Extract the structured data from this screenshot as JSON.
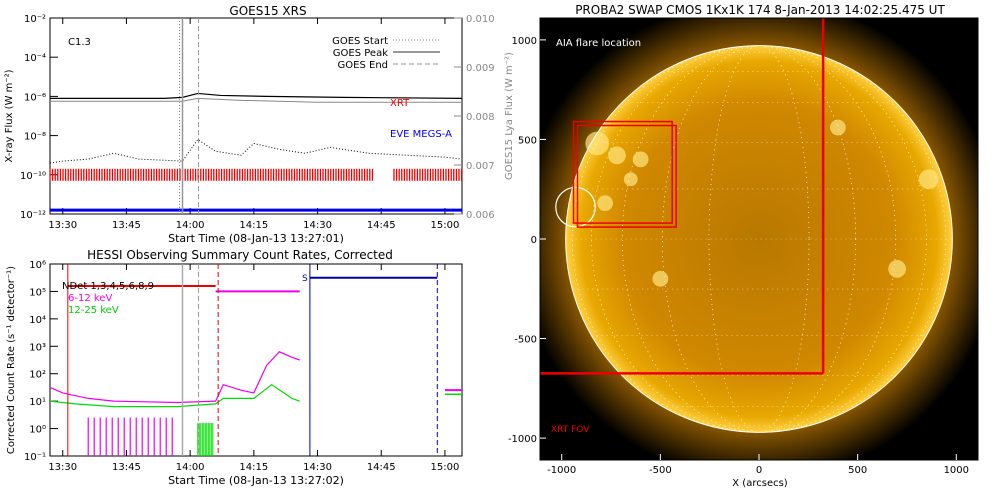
{
  "chart_data": [
    {
      "id": "goes",
      "type": "line",
      "title": "GOES15 XRS",
      "xlabel": "Start Time (08-Jan-13 13:27:01)",
      "ylabel": "X-ray Flux (W m⁻²)",
      "ylabel_right": "GOES15 Lya Flux (W m⁻²)",
      "xlim": [
        13.45,
        15.067
      ],
      "ylim_log": [
        -12,
        -2
      ],
      "ylim_right": [
        0.006,
        0.01
      ],
      "xticks": [
        13.5,
        13.75,
        14.0,
        14.25,
        14.5,
        14.75,
        15.0
      ],
      "xtick_labels": [
        "13:30",
        "13:45",
        "14:00",
        "14:15",
        "14:30",
        "14:45",
        "15:00"
      ],
      "yticks_log": [
        -2,
        -4,
        -6,
        -8,
        -10,
        -12
      ],
      "ytick_labels": [
        "10⁻²",
        "10⁻⁴",
        "10⁻⁶",
        "10⁻⁸",
        "10⁻¹⁰",
        "10⁻¹²"
      ],
      "yticks_right": [
        0.006,
        0.007,
        0.008,
        0.009,
        0.01
      ],
      "ytick_labels_right": [
        "0.006",
        "0.007",
        "0.008",
        "0.009",
        "0.010"
      ],
      "class_label": "C1.3",
      "legend": [
        "GOES Start",
        "GOES Peak",
        "GOES End"
      ],
      "event_times": {
        "start": 13.97,
        "peak": 14.033
      },
      "series_labels": {
        "xrt": "XRT",
        "eve": "EVE MEGS-A"
      },
      "long_channel_log": [
        [
          13.45,
          -6.1
        ],
        [
          13.9,
          -6.1
        ],
        [
          13.97,
          -6.05
        ],
        [
          14.03,
          -5.85
        ],
        [
          14.12,
          -5.95
        ],
        [
          14.3,
          -6.0
        ],
        [
          14.6,
          -6.05
        ],
        [
          15.067,
          -6.1
        ]
      ],
      "long_channel2_log": [
        [
          13.45,
          -6.25
        ],
        [
          13.97,
          -6.25
        ],
        [
          14.03,
          -6.1
        ],
        [
          14.2,
          -6.2
        ],
        [
          14.5,
          -6.3
        ],
        [
          15.067,
          -6.3
        ]
      ],
      "lya_log": [
        [
          13.45,
          -9.4
        ],
        [
          13.5,
          -9.3
        ],
        [
          13.6,
          -9.2
        ],
        [
          13.7,
          -8.9
        ],
        [
          13.8,
          -9.2
        ],
        [
          13.97,
          -9.3
        ],
        [
          14.03,
          -8.2
        ],
        [
          14.1,
          -8.8
        ],
        [
          14.2,
          -9.0
        ],
        [
          14.25,
          -8.4
        ],
        [
          14.35,
          -8.7
        ],
        [
          14.45,
          -8.9
        ],
        [
          14.55,
          -8.6
        ],
        [
          14.7,
          -8.9
        ],
        [
          14.85,
          -9.0
        ],
        [
          15.0,
          -9.1
        ],
        [
          15.067,
          -9.2
        ]
      ],
      "xrt_bands": [
        [
          13.45,
          14.72
        ],
        [
          14.8,
          15.067
        ]
      ],
      "eve_level_log": -11.8
    },
    {
      "id": "hessi",
      "type": "line",
      "title": "HESSI Observing Summary Count Rates, Corrected",
      "xlabel": "Start Time (08-Jan-13 13:27:02)",
      "ylabel": "Corrected Count Rate (s⁻¹ detector⁻¹)",
      "xlim": [
        13.45,
        15.067
      ],
      "ylim_log": [
        -1,
        6
      ],
      "xticks": [
        13.5,
        13.75,
        14.0,
        14.25,
        14.5,
        14.75,
        15.0
      ],
      "xtick_labels": [
        "13:30",
        "13:45",
        "14:00",
        "14:15",
        "14:30",
        "14:45",
        "15:00"
      ],
      "yticks_log": [
        6,
        5,
        4,
        3,
        2,
        1,
        0,
        -1
      ],
      "ytick_labels": [
        "10⁶",
        "10⁵",
        "10⁴",
        "10³",
        "10²",
        "10¹",
        "10⁰",
        "10⁻¹"
      ],
      "annotations": {
        "det": "NDet 1,3,4,5,6,8,9",
        "s": "S"
      },
      "series": [
        {
          "name": "6-12 keV",
          "color": "#ee00ee",
          "points_log": [
            [
              13.45,
              1.5
            ],
            [
              13.5,
              1.3
            ],
            [
              13.6,
              1.1
            ],
            [
              13.7,
              1.0
            ],
            [
              13.95,
              0.95
            ],
            [
              14.1,
              1.0
            ],
            [
              14.13,
              1.6
            ],
            [
              14.2,
              1.4
            ],
            [
              14.25,
              1.3
            ],
            [
              14.3,
              2.3
            ],
            [
              14.35,
              2.8
            ],
            [
              14.4,
              2.6
            ],
            [
              14.43,
              2.5
            ]
          ]
        },
        {
          "name": "12-25 keV",
          "color": "#00dd00",
          "points_log": [
            [
              13.45,
              1.0
            ],
            [
              13.55,
              0.9
            ],
            [
              13.7,
              0.8
            ],
            [
              13.95,
              0.8
            ],
            [
              14.1,
              0.9
            ],
            [
              14.13,
              1.1
            ],
            [
              14.25,
              1.1
            ],
            [
              14.32,
              1.6
            ],
            [
              14.4,
              1.1
            ],
            [
              14.43,
              1.0
            ]
          ]
        }
      ],
      "atten_red_log": 5.2,
      "atten_red_xrange": [
        13.52,
        14.1
      ],
      "atten_mag_log": 5.0,
      "atten_mag_xrange": [
        14.1,
        14.43
      ],
      "blue_level_log": 5.5,
      "blue_xrange": [
        14.47,
        14.97
      ],
      "right_segment_log": [
        [
          15.0,
          1.4
        ],
        [
          15.067,
          1.4
        ]
      ],
      "lines": {
        "red_solid": 13.52,
        "gray_solid": 13.97,
        "gray_dash": 14.033,
        "red_dash": 14.11,
        "blue_solid": 14.47,
        "blue_dash": 14.97
      }
    },
    {
      "id": "swap",
      "type": "image",
      "title": "PROBA2 SWAP CMOS 1Kx1K 174  8-Jan-2013 14:02:25.475 UT",
      "xlabel": "X (arcsecs)",
      "xlim": [
        -1110,
        1110
      ],
      "ylim": [
        -1110,
        1110
      ],
      "xticks": [
        -1000,
        -500,
        0,
        500,
        1000
      ],
      "yticks": [
        1000,
        500,
        0,
        -500,
        -1000
      ],
      "aia_label": "AIA flare location",
      "xrt_label": "XRT FOV",
      "sun_radius": 980,
      "boxes": [
        {
          "x0": -920,
          "y0": 570,
          "x1": -420,
          "y1": 60
        },
        {
          "x0": -940,
          "y0": 590,
          "x1": -440,
          "y1": 80
        }
      ],
      "aia_circle": {
        "x": -930,
        "y": 160,
        "r": 100
      },
      "xrt_fov": {
        "x": 325,
        "y": -675
      }
    }
  ]
}
